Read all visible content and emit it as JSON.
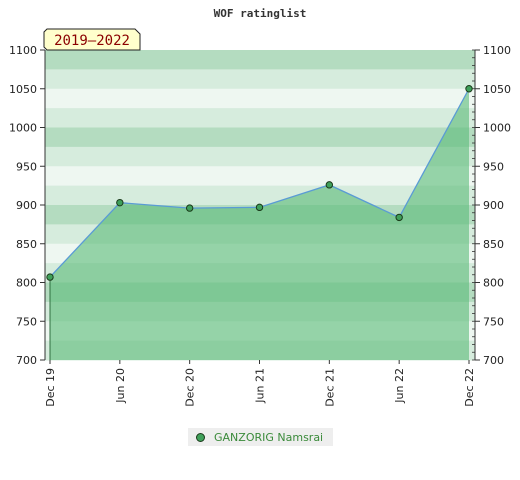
{
  "chart_data": {
    "type": "area",
    "title": "WOF ratinglist",
    "period_label": "2019–2022",
    "x_tick_labels": [
      "Dec 19",
      "Jun 20",
      "Dec 20",
      "Jun 21",
      "Dec 21",
      "Jun 22",
      "Dec 22"
    ],
    "y_ticks": [
      700,
      750,
      800,
      850,
      900,
      950,
      1000,
      1050,
      1100
    ],
    "ylim": [
      700,
      1100
    ],
    "series": [
      {
        "name": "GANZORIG Namsrai",
        "x": [
          "Dec 19",
          "Jun 20",
          "Dec 20",
          "Jun 21",
          "Dec 21",
          "Jun 22",
          "Dec 22"
        ],
        "values": [
          807,
          903,
          896,
          897,
          926,
          884,
          1050
        ]
      }
    ],
    "colors": {
      "line": "#5a9bd5",
      "marker": "#3fa05a",
      "fill": "#5aba78"
    },
    "legend_position": "bottom",
    "grid": true
  }
}
